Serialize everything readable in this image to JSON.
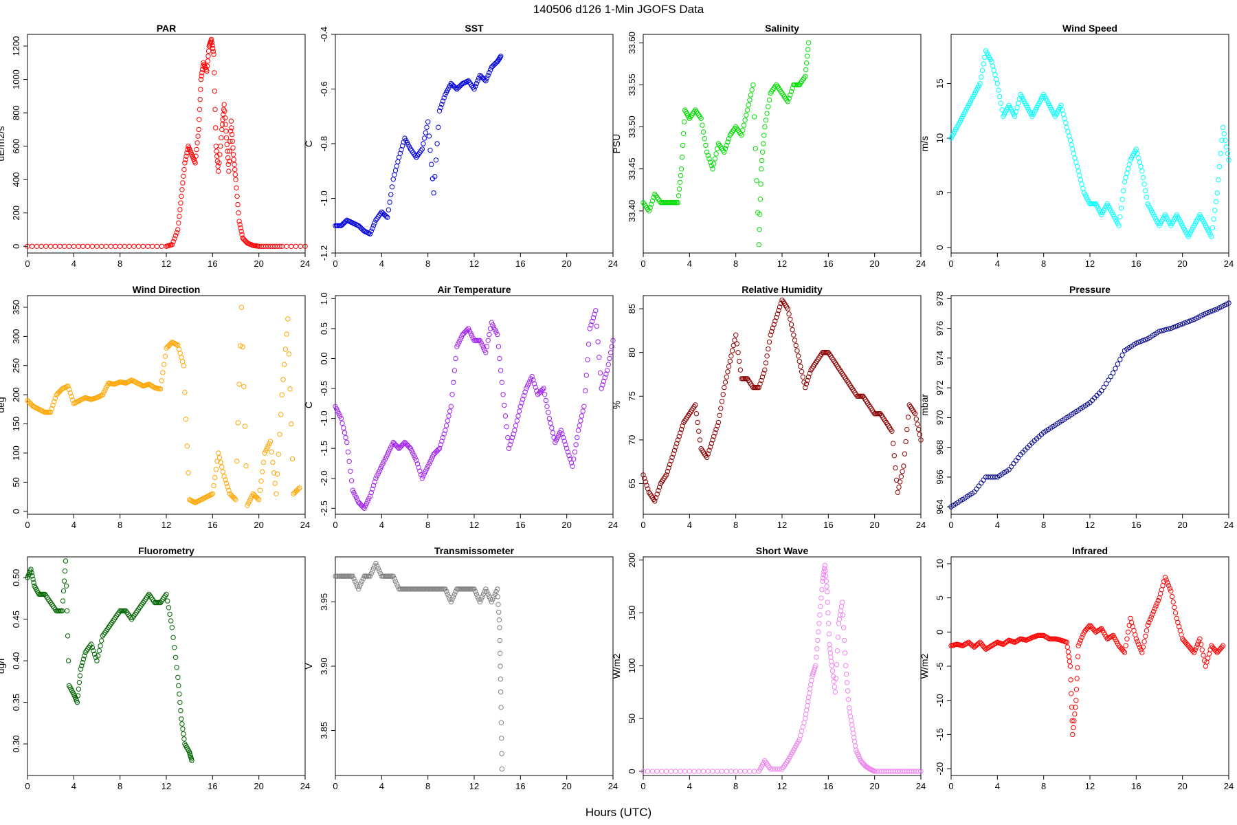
{
  "figure": {
    "title": "140506   d126   1-Min  JGOFS Data",
    "xlabel": "Hours (UTC)"
  },
  "chart_data": [
    {
      "id": "par",
      "type": "scatter",
      "title": "PAR",
      "ylabel": "uE/m2/s",
      "color": "#ff0000",
      "xlim": [
        0,
        24
      ],
      "ylim": [
        -40,
        1270
      ],
      "xticks": [
        0,
        4,
        8,
        12,
        16,
        20,
        24
      ],
      "yticks": [
        0,
        200,
        400,
        600,
        800,
        1000,
        1200
      ],
      "yticklabels": [
        "0",
        "200",
        "400",
        "600",
        "800",
        "1000",
        "1200"
      ],
      "x": [
        0,
        2,
        4,
        6,
        8,
        10,
        12,
        12.5,
        13,
        13.3,
        13.6,
        13.9,
        14.2,
        14.5,
        14.8,
        15.0,
        15.2,
        15.5,
        15.7,
        15.9,
        16.1,
        16.3,
        16.5,
        16.8,
        17.0,
        17.2,
        17.4,
        17.6,
        17.8,
        18.0,
        18.3,
        18.6,
        19.0,
        19.5,
        20,
        21,
        22,
        24
      ],
      "y": [
        0,
        0,
        0,
        0,
        0,
        0,
        0,
        10,
        100,
        300,
        500,
        600,
        550,
        500,
        700,
        1000,
        1100,
        1050,
        1200,
        1240,
        1150,
        600,
        450,
        700,
        850,
        650,
        450,
        750,
        550,
        400,
        150,
        50,
        20,
        5,
        0,
        0,
        0,
        0
      ]
    },
    {
      "id": "sst",
      "type": "scatter",
      "title": "SST",
      "ylabel": "C",
      "color": "#0000dd",
      "xlim": [
        0,
        24
      ],
      "ylim": [
        -1.2,
        -0.4
      ],
      "xticks": [
        0,
        4,
        8,
        12,
        16,
        20,
        24
      ],
      "yticks": [
        -1.2,
        -1.0,
        -0.8,
        -0.6,
        -0.4
      ],
      "yticklabels": [
        "-1.2",
        "-1.0",
        "-0.8",
        "-0.6",
        "-0.4"
      ],
      "x": [
        0,
        0.5,
        1,
        1.5,
        2,
        2.5,
        3,
        3.5,
        4,
        4.5,
        5,
        5.5,
        6,
        6.5,
        7,
        7.5,
        8,
        8.5,
        9,
        9.5,
        10,
        10.5,
        11,
        11.5,
        12,
        12.5,
        13,
        13.5,
        14,
        14.3
      ],
      "y": [
        -1.1,
        -1.1,
        -1.08,
        -1.09,
        -1.1,
        -1.12,
        -1.13,
        -1.08,
        -1.05,
        -1.07,
        -0.93,
        -0.85,
        -0.78,
        -0.82,
        -0.85,
        -0.82,
        -0.72,
        -0.98,
        -0.68,
        -0.62,
        -0.58,
        -0.6,
        -0.58,
        -0.57,
        -0.6,
        -0.55,
        -0.57,
        -0.52,
        -0.5,
        -0.48
      ]
    },
    {
      "id": "salinity",
      "type": "scatter",
      "title": "Salinity",
      "ylabel": "PSU",
      "color": "#00dd00",
      "xlim": [
        0,
        24
      ],
      "ylim": [
        33.35,
        33.61
      ],
      "xticks": [
        0,
        4,
        8,
        12,
        16,
        20,
        24
      ],
      "yticks": [
        33.4,
        33.45,
        33.5,
        33.55,
        33.6
      ],
      "yticklabels": [
        "33.40",
        "33.45",
        "33.50",
        "33.55",
        "33.60"
      ],
      "x": [
        0,
        0.5,
        1,
        1.5,
        2,
        2.5,
        3,
        3.3,
        3.6,
        4,
        4.5,
        5,
        5.5,
        6,
        6.5,
        7,
        7.5,
        8,
        8.5,
        9,
        9.5,
        10,
        10.2,
        10.5,
        11,
        11.5,
        12,
        12.5,
        13,
        13.5,
        14,
        14.3
      ],
      "y": [
        33.41,
        33.4,
        33.42,
        33.41,
        33.41,
        33.41,
        33.41,
        33.45,
        33.52,
        33.51,
        33.52,
        33.51,
        33.47,
        33.45,
        33.48,
        33.47,
        33.49,
        33.5,
        33.49,
        33.52,
        33.55,
        33.36,
        33.45,
        33.5,
        33.54,
        33.55,
        33.54,
        33.53,
        33.55,
        33.55,
        33.56,
        33.6
      ]
    },
    {
      "id": "wind_speed",
      "type": "scatter",
      "title": "Wind Speed",
      "ylabel": "m/s",
      "color": "#00ffff",
      "xlim": [
        0,
        24
      ],
      "ylim": [
        -0.5,
        19.5
      ],
      "xticks": [
        0,
        4,
        8,
        12,
        16,
        20,
        24
      ],
      "yticks": [
        0,
        5,
        10,
        15
      ],
      "yticklabels": [
        "0",
        "5",
        "10",
        "15"
      ],
      "x": [
        0,
        0.5,
        1,
        1.5,
        2,
        2.5,
        3,
        3.5,
        4,
        4.5,
        5,
        5.5,
        6,
        6.5,
        7,
        7.5,
        8,
        8.5,
        9,
        9.5,
        10,
        10.5,
        11,
        11.5,
        12,
        12.5,
        13,
        13.5,
        14,
        14.5,
        15,
        15.5,
        16,
        16.5,
        17,
        17.5,
        18,
        18.5,
        19,
        19.5,
        20,
        20.5,
        21,
        21.5,
        22,
        22.5,
        23,
        23.5,
        24
      ],
      "y": [
        10,
        11,
        12,
        13,
        14,
        15,
        18,
        17,
        15,
        12,
        13,
        12,
        14,
        13,
        12,
        13,
        14,
        13,
        12,
        13,
        11,
        9,
        7,
        5,
        4,
        4,
        3,
        4,
        3,
        2,
        6,
        8,
        9,
        7,
        4,
        3,
        2,
        3,
        2,
        3,
        2,
        1,
        2,
        3,
        2,
        1,
        5,
        11,
        8
      ]
    },
    {
      "id": "wind_direction",
      "type": "scatter",
      "title": "Wind Direction",
      "ylabel": "deg",
      "color": "#ffa500",
      "xlim": [
        0,
        24
      ],
      "ylim": [
        -5,
        370
      ],
      "xticks": [
        0,
        4,
        8,
        12,
        16,
        20,
        24
      ],
      "yticks": [
        0,
        50,
        100,
        150,
        200,
        250,
        300,
        350
      ],
      "yticklabels": [
        "0",
        "50",
        "100",
        "150",
        "200",
        "250",
        "300",
        "350"
      ],
      "x": [
        0,
        0.5,
        1,
        1.5,
        2,
        2.5,
        3,
        3.5,
        4,
        4.5,
        5,
        5.5,
        6,
        6.5,
        7,
        7.5,
        8,
        8.5,
        9,
        9.5,
        10,
        10.5,
        11,
        11.5,
        12,
        12.5,
        13,
        13.5,
        14,
        14.5,
        15,
        15.5,
        16,
        16.5,
        17,
        17.5,
        18,
        18.5,
        19,
        19.5,
        20,
        20.5,
        21,
        21.5,
        22,
        22.5,
        23,
        23.5
      ],
      "y": [
        190,
        180,
        175,
        170,
        170,
        200,
        210,
        215,
        185,
        190,
        195,
        192,
        195,
        200,
        220,
        218,
        222,
        220,
        225,
        220,
        215,
        218,
        212,
        210,
        280,
        290,
        285,
        250,
        20,
        15,
        20,
        25,
        30,
        100,
        60,
        30,
        20,
        350,
        10,
        30,
        20,
        100,
        120,
        30,
        200,
        330,
        30,
        40
      ]
    },
    {
      "id": "air_temperature",
      "type": "scatter",
      "title": "Air Temperature",
      "ylabel": "C",
      "color": "#a020f0",
      "xlim": [
        0,
        24
      ],
      "ylim": [
        -2.6,
        1.05
      ],
      "xticks": [
        0,
        4,
        8,
        12,
        16,
        20,
        24
      ],
      "yticks": [
        -2.5,
        -2.0,
        -1.5,
        -1.0,
        -0.5,
        0.0,
        0.5,
        1.0
      ],
      "yticklabels": [
        "-2.5",
        "-2.0",
        "-1.5",
        "-1.0",
        "-0.5",
        "0.0",
        "0.5",
        "1.0"
      ],
      "x": [
        0,
        0.5,
        1,
        1.5,
        2,
        2.5,
        3,
        3.5,
        4,
        4.5,
        5,
        5.5,
        6,
        6.5,
        7,
        7.5,
        8,
        8.5,
        9,
        9.5,
        10,
        10.5,
        11,
        11.5,
        12,
        12.5,
        13,
        13.5,
        14,
        14.5,
        15,
        15.5,
        16,
        16.5,
        17,
        17.5,
        18,
        18.5,
        19,
        19.5,
        20,
        20.5,
        21,
        21.5,
        22,
        22.5,
        23,
        23.5,
        24
      ],
      "y": [
        -0.8,
        -1.0,
        -1.4,
        -2.2,
        -2.4,
        -2.5,
        -2.3,
        -2.0,
        -1.8,
        -1.6,
        -1.4,
        -1.5,
        -1.4,
        -1.5,
        -1.7,
        -2.0,
        -1.8,
        -1.6,
        -1.5,
        -1.2,
        -0.8,
        0.2,
        0.4,
        0.5,
        0.3,
        0.3,
        0.1,
        0.6,
        0.4,
        -0.6,
        -1.5,
        -1.2,
        -0.8,
        -0.5,
        -0.3,
        -0.6,
        -0.5,
        -1.0,
        -1.4,
        -1.2,
        -1.5,
        -1.8,
        -1.2,
        -0.8,
        0.5,
        0.8,
        -0.5,
        -0.2,
        0.3
      ]
    },
    {
      "id": "relative_humidity",
      "type": "scatter",
      "title": "Relative Humidity",
      "ylabel": "%",
      "color": "#8b0000",
      "xlim": [
        0,
        24
      ],
      "ylim": [
        61.5,
        86.5
      ],
      "xticks": [
        0,
        4,
        8,
        12,
        16,
        20,
        24
      ],
      "yticks": [
        65,
        70,
        75,
        80,
        85
      ],
      "yticklabels": [
        "65",
        "70",
        "75",
        "80",
        "85"
      ],
      "x": [
        0,
        0.5,
        1,
        1.5,
        2,
        2.5,
        3,
        3.5,
        4,
        4.5,
        5,
        5.5,
        6,
        6.5,
        7,
        7.5,
        8,
        8.5,
        9,
        9.5,
        10,
        10.5,
        11,
        11.5,
        12,
        12.5,
        13,
        13.5,
        14,
        14.5,
        15,
        15.5,
        16,
        16.5,
        17,
        17.5,
        18,
        18.5,
        19,
        19.5,
        20,
        20.5,
        21,
        21.5,
        22,
        22.5,
        23,
        23.5,
        24
      ],
      "y": [
        66,
        64,
        63,
        65,
        66,
        68,
        70,
        72,
        73,
        74,
        69,
        68,
        70,
        72,
        76,
        79,
        82,
        77,
        77,
        76,
        76,
        78,
        82,
        84,
        86,
        85,
        82,
        79,
        76,
        78,
        79,
        80,
        80,
        79,
        78,
        77,
        76,
        75,
        75,
        74,
        73,
        73,
        72,
        71,
        64,
        67,
        74,
        73,
        70
      ]
    },
    {
      "id": "pressure",
      "type": "scatter",
      "title": "Pressure",
      "ylabel": "mbar",
      "color": "#00008b",
      "xlim": [
        0,
        24
      ],
      "ylim": [
        963.5,
        978.2
      ],
      "xticks": [
        0,
        4,
        8,
        12,
        16,
        20,
        24
      ],
      "yticks": [
        964,
        966,
        968,
        970,
        972,
        974,
        976,
        978
      ],
      "yticklabels": [
        "964",
        "966",
        "968",
        "970",
        "972",
        "974",
        "976",
        "978"
      ],
      "x": [
        0,
        1,
        2,
        3,
        4,
        5,
        6,
        7,
        8,
        9,
        10,
        11,
        12,
        13,
        14,
        15,
        16,
        17,
        18,
        19,
        20,
        21,
        22,
        23,
        24
      ],
      "y": [
        964,
        964.5,
        965,
        966,
        966,
        966.5,
        967.5,
        968.3,
        969,
        969.5,
        970,
        970.5,
        971,
        971.8,
        973,
        974.5,
        975,
        975.3,
        975.8,
        976,
        976.3,
        976.6,
        977,
        977.3,
        977.7
      ]
    },
    {
      "id": "fluorometry",
      "type": "scatter",
      "title": "Fluorometry",
      "ylabel": "ug/l",
      "color": "#006400",
      "xlim": [
        0,
        24
      ],
      "ylim": [
        0.262,
        0.525
      ],
      "xticks": [
        0,
        4,
        8,
        12,
        16,
        20,
        24
      ],
      "yticks": [
        0.3,
        0.35,
        0.4,
        0.45,
        0.5
      ],
      "yticklabels": [
        "0.30",
        "0.35",
        "0.40",
        "0.45",
        "0.50"
      ],
      "x": [
        0,
        0.3,
        0.6,
        1,
        1.5,
        2,
        2.5,
        3,
        3.3,
        3.6,
        4,
        4.3,
        4.6,
        5,
        5.5,
        6,
        6.5,
        7,
        7.5,
        8,
        8.5,
        9,
        9.5,
        10,
        10.5,
        11,
        11.5,
        12,
        12.5,
        13,
        13.3,
        13.6,
        14,
        14.2
      ],
      "y": [
        0.5,
        0.51,
        0.49,
        0.48,
        0.48,
        0.47,
        0.46,
        0.46,
        0.52,
        0.37,
        0.36,
        0.35,
        0.39,
        0.41,
        0.42,
        0.4,
        0.43,
        0.44,
        0.45,
        0.46,
        0.46,
        0.45,
        0.46,
        0.47,
        0.48,
        0.47,
        0.47,
        0.48,
        0.44,
        0.38,
        0.33,
        0.3,
        0.29,
        0.28
      ]
    },
    {
      "id": "transmissometer",
      "type": "scatter",
      "title": "Transmissometer",
      "ylabel": "V",
      "color": "#808080",
      "xlim": [
        0,
        24
      ],
      "ylim": [
        3.815,
        3.985
      ],
      "xticks": [
        0,
        4,
        8,
        12,
        16,
        20,
        24
      ],
      "yticks": [
        3.85,
        3.9,
        3.95
      ],
      "yticklabels": [
        "3.85",
        "3.90",
        "3.95"
      ],
      "x": [
        0,
        0.5,
        1,
        1.5,
        2,
        2.5,
        3,
        3.5,
        4,
        4.5,
        5,
        5.5,
        6,
        6.5,
        7,
        7.5,
        8,
        8.5,
        9,
        9.5,
        10,
        10.5,
        11,
        11.5,
        12,
        12.5,
        13,
        13.5,
        14,
        14.2,
        14.3,
        14.4
      ],
      "y": [
        3.97,
        3.97,
        3.97,
        3.97,
        3.96,
        3.97,
        3.97,
        3.98,
        3.97,
        3.97,
        3.97,
        3.96,
        3.96,
        3.96,
        3.96,
        3.96,
        3.96,
        3.96,
        3.96,
        3.96,
        3.95,
        3.96,
        3.96,
        3.96,
        3.96,
        3.95,
        3.96,
        3.95,
        3.96,
        3.93,
        3.88,
        3.82
      ]
    },
    {
      "id": "short_wave",
      "type": "scatter",
      "title": "Short Wave",
      "ylabel": "W/m2",
      "color": "#ee82ee",
      "xlim": [
        0,
        24
      ],
      "ylim": [
        -4,
        203
      ],
      "xticks": [
        0,
        4,
        8,
        12,
        16,
        20,
        24
      ],
      "yticks": [
        0,
        50,
        100,
        150,
        200
      ],
      "yticklabels": [
        "0",
        "50",
        "100",
        "150",
        "200"
      ],
      "x": [
        0,
        2,
        4,
        6,
        8,
        10,
        10.5,
        11,
        12,
        12.5,
        13,
        13.5,
        14,
        14.3,
        14.6,
        14.9,
        15.2,
        15.5,
        15.7,
        15.9,
        16.1,
        16.3,
        16.6,
        16.9,
        17.2,
        17.5,
        17.8,
        18.1,
        18.4,
        18.8,
        19.2,
        19.6,
        20,
        21,
        22,
        23,
        24
      ],
      "y": [
        0,
        0,
        0,
        0,
        0,
        0,
        10,
        2,
        2,
        10,
        20,
        30,
        50,
        70,
        90,
        100,
        140,
        180,
        195,
        170,
        120,
        100,
        75,
        140,
        160,
        100,
        60,
        40,
        20,
        10,
        5,
        2,
        0,
        0,
        0,
        0,
        0
      ]
    },
    {
      "id": "infrared",
      "type": "scatter",
      "title": "Infrared",
      "ylabel": "W/m2",
      "color": "#ff0000",
      "xlim": [
        0,
        24
      ],
      "ylim": [
        -21,
        11
      ],
      "xticks": [
        0,
        4,
        8,
        12,
        16,
        20,
        24
      ],
      "yticks": [
        -20,
        -15,
        -10,
        -5,
        0,
        5,
        10
      ],
      "yticklabels": [
        "-20",
        "-15",
        "-10",
        "-5",
        "0",
        "5",
        "10"
      ],
      "x": [
        0,
        0.5,
        1,
        1.5,
        2,
        2.5,
        3,
        3.5,
        4,
        4.5,
        5,
        5.5,
        6,
        6.5,
        7,
        7.5,
        8,
        8.5,
        9,
        9.5,
        10,
        10.3,
        10.5,
        10.8,
        11,
        11.5,
        12,
        12.5,
        13,
        13.5,
        14,
        14.5,
        15,
        15.5,
        16,
        16.5,
        17,
        17.5,
        18,
        18.5,
        19,
        19.5,
        20,
        20.5,
        21,
        21.5,
        22,
        22.5,
        23,
        23.5
      ],
      "y": [
        -2,
        -1.8,
        -2,
        -1.5,
        -2.2,
        -1.5,
        -2.5,
        -2,
        -1.5,
        -1.8,
        -1.2,
        -1.5,
        -1,
        -1.2,
        -0.8,
        -0.5,
        -0.5,
        -1,
        -1,
        -1.2,
        -1.5,
        -5,
        -15,
        -10,
        -2,
        0,
        1,
        0,
        0.5,
        -1,
        -0.5,
        -2,
        -3,
        2,
        -1,
        -3,
        1,
        3,
        5,
        8,
        6,
        2,
        -1,
        -2,
        -3,
        -1,
        -5,
        -2,
        -3,
        -2
      ]
    }
  ]
}
